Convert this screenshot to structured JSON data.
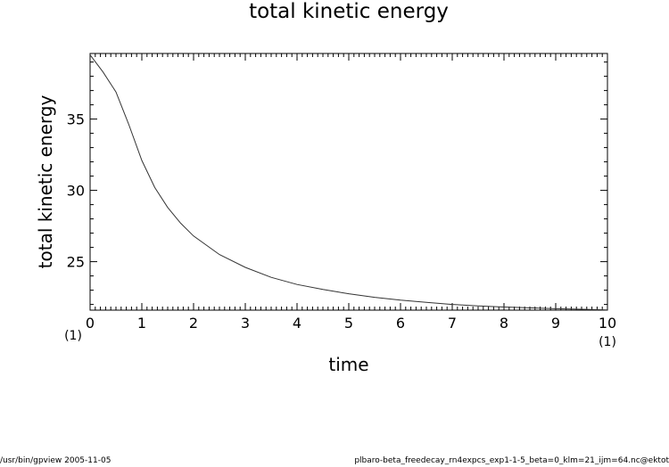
{
  "chart_data": {
    "type": "line",
    "title": "total kinetic energy",
    "xlabel": "time",
    "ylabel": "total kinetic energy",
    "xlim": [
      0,
      10
    ],
    "ylim": [
      21.6,
      39.6
    ],
    "xticks": [
      0,
      1,
      2,
      3,
      4,
      5,
      6,
      7,
      8,
      9,
      10
    ],
    "yticks": [
      25,
      30,
      35
    ],
    "x_unit_note": "(1)",
    "grid": false,
    "series": [
      {
        "x": [
          0,
          0.25,
          0.5,
          0.75,
          1,
          1.25,
          1.5,
          1.75,
          2,
          2.5,
          3,
          3.5,
          4,
          4.5,
          5,
          5.5,
          6,
          6.5,
          7,
          7.5,
          8,
          8.5,
          9,
          9.5,
          10
        ],
        "y": [
          39.5,
          38.3,
          36.9,
          34.6,
          32.1,
          30.2,
          28.8,
          27.7,
          26.8,
          25.5,
          24.6,
          23.9,
          23.4,
          23.05,
          22.75,
          22.5,
          22.3,
          22.15,
          22.0,
          21.9,
          21.82,
          21.76,
          21.7,
          21.66,
          21.62
        ]
      }
    ]
  },
  "footer": {
    "left": "/usr/bin/gpview  2005-11-05",
    "right": "plbaro-beta_freedecay_rn4expcs_exp1-1-5_beta=0_klm=21_ijm=64.nc@ektot"
  }
}
